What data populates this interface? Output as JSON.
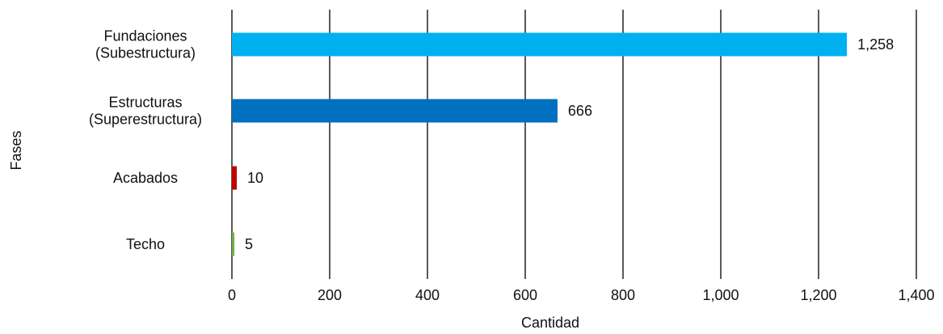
{
  "chart_data": {
    "type": "bar",
    "orientation": "horizontal",
    "title": "",
    "xlabel": "Cantidad",
    "ylabel": "Fases",
    "xlim": [
      0,
      1400
    ],
    "x_ticks": [
      0,
      200,
      400,
      600,
      800,
      1000,
      1200,
      1400
    ],
    "x_tick_labels": [
      "0",
      "200",
      "400",
      "600",
      "800",
      "1,000",
      "1,200",
      "1,400"
    ],
    "grid": "vertical",
    "legend": "none",
    "categories": [
      [
        "Fundaciones",
        "(Subestructura)"
      ],
      [
        "Estructuras",
        "(Superestructura)"
      ],
      [
        "Acabados"
      ],
      [
        "Techo"
      ]
    ],
    "values": [
      1258,
      666,
      10,
      5
    ],
    "value_labels": [
      "1,258",
      "666",
      "10",
      "5"
    ],
    "colors": [
      "#00b0f0",
      "#0070c0",
      "#c00000",
      "#70ad47"
    ]
  }
}
